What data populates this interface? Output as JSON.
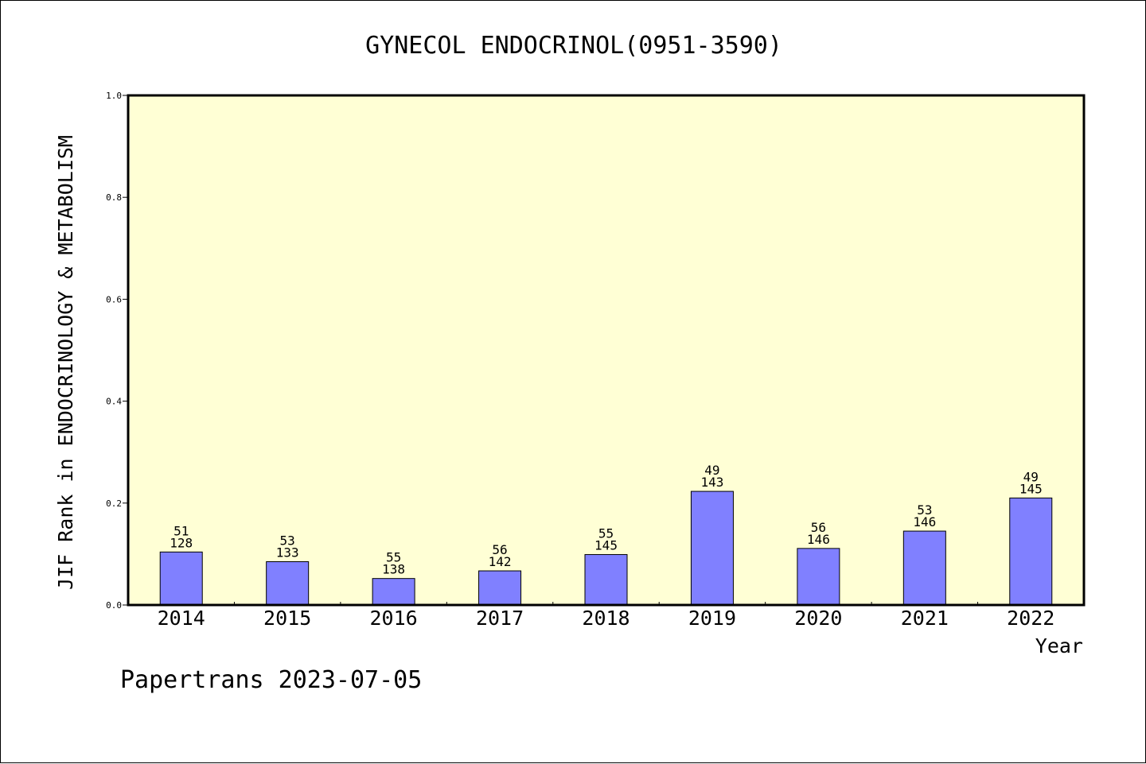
{
  "chart_data": {
    "type": "bar",
    "title": "GYNECOL ENDOCRINOL(0951-3590)",
    "xlabel": "Year",
    "ylabel": "JIF Rank in ENDOCRINOLOGY & METABOLISM",
    "ylim": [
      0,
      1.0
    ],
    "yticks": [
      "0.0",
      "0.2",
      "0.4",
      "0.6",
      "0.8",
      "1.0"
    ],
    "categories": [
      "2014",
      "2015",
      "2016",
      "2017",
      "2018",
      "2019",
      "2020",
      "2021",
      "2022"
    ],
    "values": [
      0.104,
      0.085,
      0.052,
      0.067,
      0.099,
      0.223,
      0.111,
      0.145,
      0.21
    ],
    "rank": [
      "51",
      "53",
      "55",
      "56",
      "55",
      "49",
      "56",
      "53",
      "49"
    ],
    "total": [
      "128",
      "133",
      "138",
      "142",
      "145",
      "143",
      "146",
      "146",
      "145"
    ],
    "grid": false,
    "colors": {
      "plot_background": "#ffffd5",
      "bar_fill": "#8080ff",
      "bar_stroke": "#000000"
    }
  },
  "footer": {
    "text": "Papertrans 2023-07-05"
  }
}
